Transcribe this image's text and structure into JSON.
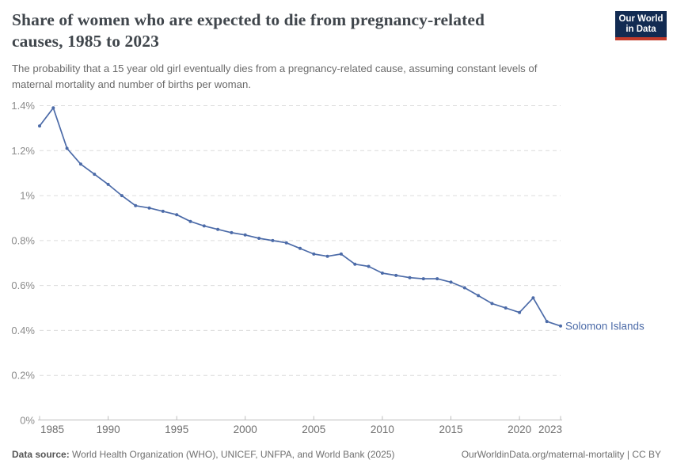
{
  "logo": {
    "line1": "Our World",
    "line2": "in Data",
    "bg_color": "#122b52",
    "bar_color": "#c23b2b"
  },
  "header": {
    "title_lines": [
      "Share of women who are expected to die from pregnancy-related",
      "causes, 1985 to 2023"
    ],
    "subtitle_lines": [
      "The probability that a 15 year old girl eventually dies from a pregnancy-related cause, assuming constant levels of",
      "maternal mortality and number of births per woman."
    ]
  },
  "chart_data": {
    "type": "line",
    "title": "Share of women who are expected to die from pregnancy-related causes, 1985 to 2023",
    "subtitle": "The probability that a 15 year old girl eventually dies from a pregnancy-related cause, assuming constant levels of maternal mortality and number of births per woman.",
    "entity": "Solomon Islands",
    "unit": "%",
    "xlim": [
      1985,
      2023
    ],
    "ylim": [
      0,
      1.4
    ],
    "grid": true,
    "legend_position": "end-of-line",
    "line_color": "#4c6ba8",
    "x": [
      1985,
      1986,
      1987,
      1988,
      1989,
      1990,
      1991,
      1992,
      1993,
      1994,
      1995,
      1996,
      1997,
      1998,
      1999,
      2000,
      2001,
      2002,
      2003,
      2004,
      2005,
      2006,
      2007,
      2008,
      2009,
      2010,
      2011,
      2012,
      2013,
      2014,
      2015,
      2016,
      2017,
      2018,
      2019,
      2020,
      2021,
      2022,
      2023
    ],
    "series": [
      {
        "name": "Solomon Islands",
        "values": [
          1.31,
          1.39,
          1.21,
          1.14,
          1.095,
          1.05,
          1.0,
          0.955,
          0.945,
          0.93,
          0.915,
          0.885,
          0.865,
          0.85,
          0.835,
          0.825,
          0.81,
          0.8,
          0.79,
          0.765,
          0.74,
          0.73,
          0.74,
          0.695,
          0.685,
          0.655,
          0.645,
          0.635,
          0.63,
          0.63,
          0.615,
          0.59,
          0.555,
          0.52,
          0.5,
          0.48,
          0.545,
          0.44,
          0.42
        ]
      }
    ],
    "x_ticks": [
      1985,
      1990,
      1995,
      2000,
      2005,
      2010,
      2015,
      2020,
      2023
    ],
    "y_ticks": [
      {
        "v": 0,
        "label": "0%"
      },
      {
        "v": 0.2,
        "label": "0.2%"
      },
      {
        "v": 0.4,
        "label": "0.4%"
      },
      {
        "v": 0.6,
        "label": "0.6%"
      },
      {
        "v": 0.8,
        "label": "0.8%"
      },
      {
        "v": 1.0,
        "label": "1%"
      },
      {
        "v": 1.2,
        "label": "1.2%"
      },
      {
        "v": 1.4,
        "label": "1.4%"
      }
    ]
  },
  "footer": {
    "source_label": "Data source:",
    "source_text": " World Health Organization (WHO), UNICEF, UNFPA, and World Bank (2025)",
    "credit": "OurWorldinData.org/maternal-mortality | CC BY"
  }
}
